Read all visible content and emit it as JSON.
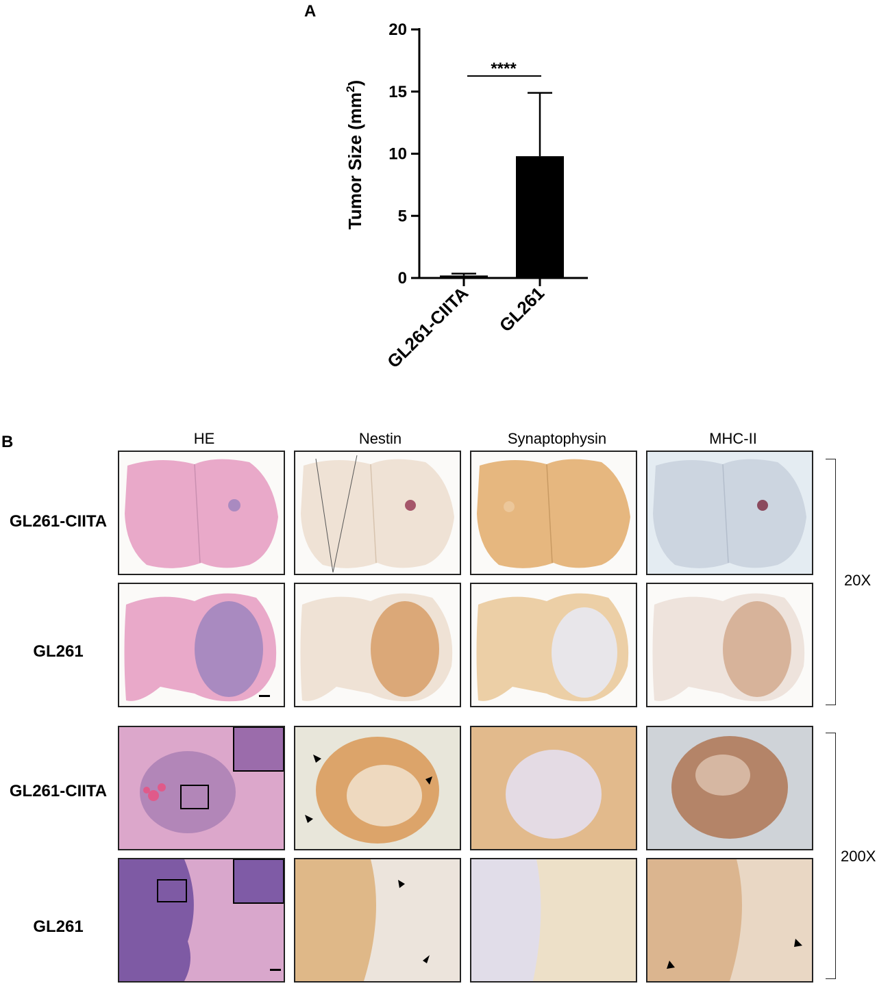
{
  "panel_a": {
    "letter": "A",
    "chart_data": {
      "type": "bar",
      "categories": [
        "GL261-CIITA",
        "GL261"
      ],
      "values": [
        0.2,
        9.8
      ],
      "error_upper": [
        0.35,
        14.9
      ],
      "ylabel": "Tumor Size (mm²)",
      "ylabel_main": "Tumor Size (mm",
      "ylabel_sup": "2",
      "ylabel_close": ")",
      "ylim": [
        0,
        20
      ],
      "yticks": [
        "0",
        "5",
        "10",
        "15",
        "20"
      ],
      "significance": "****",
      "bar_colors": [
        "#000000",
        "#000000"
      ]
    }
  },
  "panel_b": {
    "letter": "B",
    "columns": [
      "HE",
      "Nestin",
      "Synaptophysin",
      "MHC-II"
    ],
    "rows": [
      "GL261-CIITA",
      "GL261",
      "GL261-CIITA",
      "GL261"
    ],
    "magnifications": [
      "20X",
      "200X"
    ],
    "tile_colors": {
      "he": "#e9a9c9",
      "he_tumor": "#a98ac0",
      "nestin": "#efe2d5",
      "nestin_tumor": "#dba878",
      "synapto": "#e6b77f",
      "synapto_tumor": "#e8e6ea",
      "mhc_blue": "#ccd5e0",
      "mhc": "#eee3dc",
      "mhc_tumor": "#d7b39a"
    }
  }
}
